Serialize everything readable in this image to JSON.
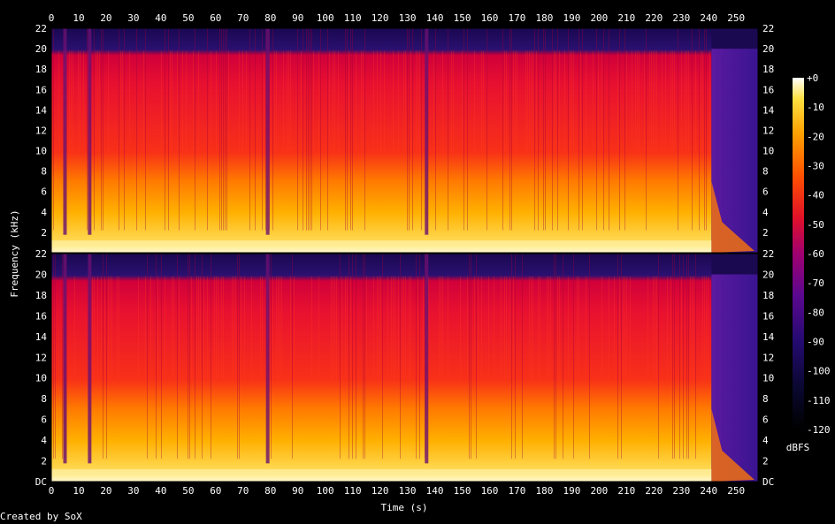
{
  "chart_data": {
    "type": "heatmap",
    "title": "",
    "xlabel": "Time (s)",
    "ylabel": "Frequency (kHz)",
    "xlim": [
      0,
      258
    ],
    "x_ticks": [
      "0",
      "10",
      "20",
      "30",
      "40",
      "50",
      "60",
      "70",
      "80",
      "90",
      "100",
      "110",
      "120",
      "130",
      "140",
      "150",
      "160",
      "170",
      "180",
      "190",
      "200",
      "210",
      "220",
      "230",
      "240",
      "250"
    ],
    "y_ticks": [
      "DC",
      "2",
      "4",
      "6",
      "8",
      "10",
      "12",
      "14",
      "16",
      "18",
      "20",
      "22"
    ],
    "ylim_khz": [
      0,
      22
    ],
    "channels": 2,
    "colorbar": {
      "label": "dBFS",
      "ticks": [
        "+0",
        "-10",
        "-20",
        "-30",
        "-40",
        "-50",
        "-60",
        "-70",
        "-80",
        "-90",
        "-100",
        "-110",
        "-120"
      ],
      "range_db": [
        -120,
        0
      ]
    },
    "content_cutoff_khz": 20,
    "signal_end_s": 241,
    "dropouts_s": [
      5,
      14,
      79,
      137
    ]
  },
  "footer": {
    "credit": "Created by SoX"
  }
}
